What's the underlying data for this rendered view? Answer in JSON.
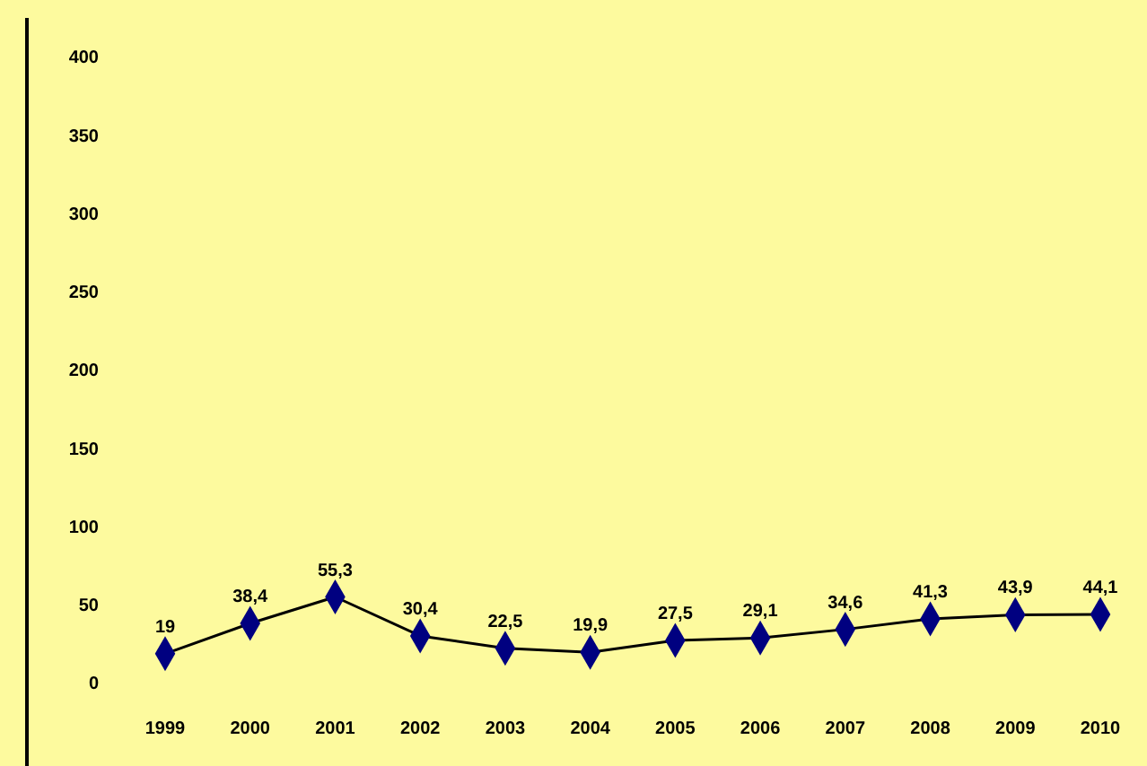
{
  "chart_data": {
    "type": "line",
    "categories": [
      "1999",
      "2000",
      "2001",
      "2002",
      "2003",
      "2004",
      "2005",
      "2006",
      "2007",
      "2008",
      "2009",
      "2010"
    ],
    "series": [
      {
        "color": "#000080",
        "values": [
          19,
          38.4,
          55.3,
          30.4,
          22.5,
          19.9,
          27.5,
          29.1,
          34.6,
          41.3,
          43.9,
          44.1
        ],
        "value_labels": [
          "19",
          "38,4",
          "55,3",
          "30,4",
          "22,5",
          "19,9",
          "27,5",
          "29,1",
          "34,6",
          "41,3",
          "43,9",
          "44,1"
        ]
      }
    ],
    "ylim": [
      0,
      400
    ],
    "yticks": [
      0,
      50,
      100,
      150,
      200,
      250,
      300,
      350,
      400
    ],
    "grid": false,
    "marker": "diamond",
    "line_style": "solid"
  }
}
